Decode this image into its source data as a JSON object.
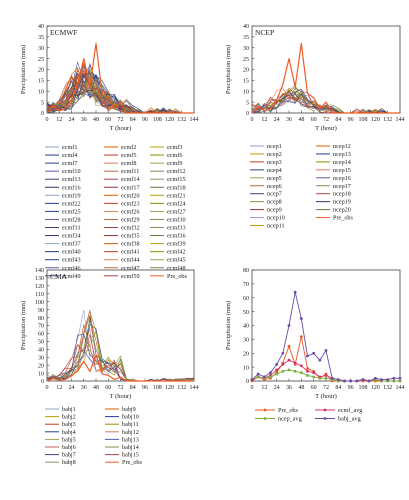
{
  "axis_text": {
    "xlabel": "T (hour)",
    "ylabel": "Precipitation (mm)"
  },
  "colors": {
    "ens": [
      "#8da0cb",
      "#d95f02",
      "#b8a000",
      "#1f3a93",
      "#c0392b",
      "#8e8e00",
      "#27408b",
      "#e07a5f",
      "#a0a050",
      "#5a5aa0",
      "#c06050",
      "#709050",
      "#404080",
      "#b04040",
      "#909060",
      "#303070",
      "#a03030",
      "#707040"
    ],
    "obs": "#f05a24",
    "ecmf_avg": "#d6336c",
    "ncep_avg": "#7cae3b",
    "babj_avg": "#6a4ca8"
  },
  "chart_data": [
    {
      "type": "line",
      "label": "ECMWF",
      "x": [
        0,
        6,
        12,
        18,
        24,
        30,
        36,
        42,
        48,
        54,
        60,
        66,
        72,
        78,
        84,
        90,
        96,
        102,
        108,
        114,
        120,
        126,
        132,
        138,
        144
      ],
      "ylim": [
        0,
        40
      ],
      "yticks": [
        0,
        5,
        10,
        15,
        20,
        25,
        30,
        35,
        40
      ],
      "xticks": [
        0,
        12,
        24,
        36,
        48,
        60,
        72,
        84,
        96,
        108,
        120,
        132,
        144
      ],
      "series": [
        {
          "name": "ecmf_avg",
          "values": [
            1,
            3,
            2,
            4,
            8,
            12,
            15,
            13,
            11,
            7,
            6,
            3,
            4,
            2,
            1,
            0,
            0,
            0,
            1,
            0,
            1,
            0,
            0,
            0,
            0
          ]
        },
        {
          "name": "Pre_obs",
          "values": [
            0,
            3,
            1,
            2,
            6,
            13,
            25,
            12,
            32,
            9,
            7,
            2,
            5,
            0,
            0,
            0,
            0,
            0,
            0,
            0,
            0,
            0,
            0,
            0,
            0
          ]
        }
      ],
      "ensemble_count": 50,
      "legend": {
        "columns": 3,
        "entries": [
          "ecmf1",
          "ecmf2",
          "ecmf3",
          "ecmf4",
          "ecmf5",
          "ecmf6",
          "ecmf7",
          "ecmf8",
          "ecmf9",
          "ecmf10",
          "ecmf11",
          "ecmf12",
          "ecmf13",
          "ecmf14",
          "ecmf15",
          "ecmf16",
          "ecmf17",
          "ecmf18",
          "ecmf19",
          "ecmf20",
          "ecmf21",
          "ecmf22",
          "ecmf23",
          "ecmf24",
          "ecmf25",
          "ecmf26",
          "ecmf27",
          "ecmf28",
          "ecmf29",
          "ecmf30",
          "ecmf31",
          "ecmf32",
          "ecmf33",
          "ecmf34",
          "ecmf35",
          "ecmf36",
          "ecmf37",
          "ecmf38",
          "ecmf39",
          "ecmf40",
          "ecmf41",
          "ecmf42",
          "ecmf43",
          "ecmf44",
          "ecmf45",
          "ecmf46",
          "ecmf47",
          "ecmf48",
          "ecmf49",
          "ecmf50",
          "Pre_obs"
        ]
      }
    },
    {
      "type": "line",
      "label": "NCEP",
      "x": [
        0,
        6,
        12,
        18,
        24,
        30,
        36,
        42,
        48,
        54,
        60,
        66,
        72,
        78,
        84,
        90,
        96,
        102,
        108,
        114,
        120,
        126,
        132,
        138,
        144
      ],
      "ylim": [
        0,
        40
      ],
      "yticks": [
        0,
        5,
        10,
        15,
        20,
        25,
        30,
        35,
        40
      ],
      "xticks": [
        0,
        12,
        24,
        36,
        48,
        60,
        72,
        84,
        96,
        108,
        120,
        132,
        144
      ],
      "series": [
        {
          "name": "ncep_avg",
          "values": [
            1,
            3,
            2,
            3,
            5,
            7,
            8,
            7,
            6,
            4,
            3,
            2,
            2,
            1,
            0,
            0,
            0,
            0,
            1,
            0,
            1,
            0,
            0,
            0,
            0
          ]
        },
        {
          "name": "Pre_obs",
          "values": [
            0,
            3,
            1,
            2,
            6,
            13,
            25,
            12,
            32,
            9,
            7,
            2,
            5,
            0,
            0,
            0,
            0,
            0,
            0,
            0,
            0,
            0,
            0,
            0,
            0
          ]
        }
      ],
      "ensemble_count": 20,
      "legend": {
        "columns": 2,
        "entries": [
          "ncep1",
          "ncep12",
          "ncep2",
          "ncep13",
          "ncep3",
          "ncep14",
          "ncep4",
          "ncep15",
          "ncep5",
          "ncep16",
          "ncep6",
          "ncep17",
          "ncep7",
          "ncep18",
          "ncep8",
          "ncep19",
          "ncep9",
          "ncep20",
          "ncep10",
          "Pre_obs",
          "ncep11"
        ]
      }
    },
    {
      "type": "line",
      "label": "CMA",
      "x": [
        0,
        6,
        12,
        18,
        24,
        30,
        36,
        42,
        48,
        54,
        60,
        66,
        72,
        78,
        84,
        90,
        96,
        102,
        108,
        114,
        120,
        126,
        132,
        138,
        144
      ],
      "ylim": [
        0,
        140
      ],
      "yticks": [
        0,
        10,
        20,
        30,
        40,
        50,
        60,
        70,
        80,
        90,
        100,
        110,
        120,
        130,
        140
      ],
      "xticks": [
        0,
        12,
        24,
        36,
        48,
        60,
        72,
        84,
        96,
        108,
        120,
        132,
        144
      ],
      "series": [
        {
          "name": "babj_avg",
          "values": [
            1,
            5,
            3,
            6,
            12,
            20,
            40,
            64,
            45,
            18,
            20,
            15,
            22,
            2,
            1,
            0,
            0,
            0,
            1,
            0,
            2,
            1,
            1,
            2,
            2
          ]
        },
        {
          "name": "Pre_obs",
          "values": [
            0,
            3,
            1,
            2,
            6,
            13,
            25,
            12,
            32,
            9,
            7,
            2,
            5,
            0,
            0,
            0,
            0,
            0,
            0,
            0,
            0,
            0,
            0,
            0,
            0
          ]
        }
      ],
      "ensemble_count": 15,
      "legend": {
        "columns": 2,
        "entries": [
          "babj1",
          "babj9",
          "babj2",
          "babj10",
          "babj3",
          "babj11",
          "babj4",
          "babj12",
          "babj5",
          "babj13",
          "babj6",
          "babj14",
          "babj7",
          "babj15",
          "babj8",
          "Pre_obs"
        ]
      }
    },
    {
      "type": "line",
      "x": [
        0,
        6,
        12,
        18,
        24,
        30,
        36,
        42,
        48,
        54,
        60,
        66,
        72,
        78,
        84,
        90,
        96,
        102,
        108,
        114,
        120,
        126,
        132,
        138,
        144
      ],
      "ylim": [
        0,
        80
      ],
      "yticks": [
        0,
        10,
        20,
        30,
        40,
        50,
        60,
        70,
        80
      ],
      "xticks": [
        0,
        12,
        24,
        36,
        48,
        60,
        72,
        84,
        96,
        108,
        120,
        132,
        144
      ],
      "series": [
        {
          "name": "Pre_obs",
          "values": [
            0,
            3,
            1,
            2,
            6,
            13,
            25,
            12,
            32,
            9,
            7,
            2,
            5,
            0,
            0,
            0,
            0,
            0,
            0,
            0,
            0,
            0,
            0,
            0,
            0
          ]
        },
        {
          "name": "ecmf_avg",
          "values": [
            1,
            3,
            2,
            4,
            8,
            12,
            15,
            13,
            11,
            7,
            6,
            3,
            4,
            2,
            1,
            0,
            0,
            0,
            1,
            0,
            1,
            0,
            0,
            0,
            0
          ]
        },
        {
          "name": "ncep_avg",
          "values": [
            1,
            3,
            2,
            3,
            5,
            7,
            8,
            7,
            6,
            4,
            3,
            2,
            2,
            1,
            0,
            0,
            0,
            0,
            1,
            0,
            1,
            0,
            0,
            0,
            0
          ]
        },
        {
          "name": "babj_avg",
          "values": [
            1,
            5,
            3,
            6,
            12,
            20,
            40,
            64,
            45,
            18,
            20,
            15,
            22,
            2,
            1,
            0,
            0,
            0,
            1,
            0,
            2,
            1,
            1,
            2,
            2
          ]
        }
      ],
      "legend": {
        "columns": 2,
        "entries": [
          "Pre_obs",
          "ecmf_avg",
          "ncep_avg",
          "babj_avg"
        ]
      }
    }
  ]
}
